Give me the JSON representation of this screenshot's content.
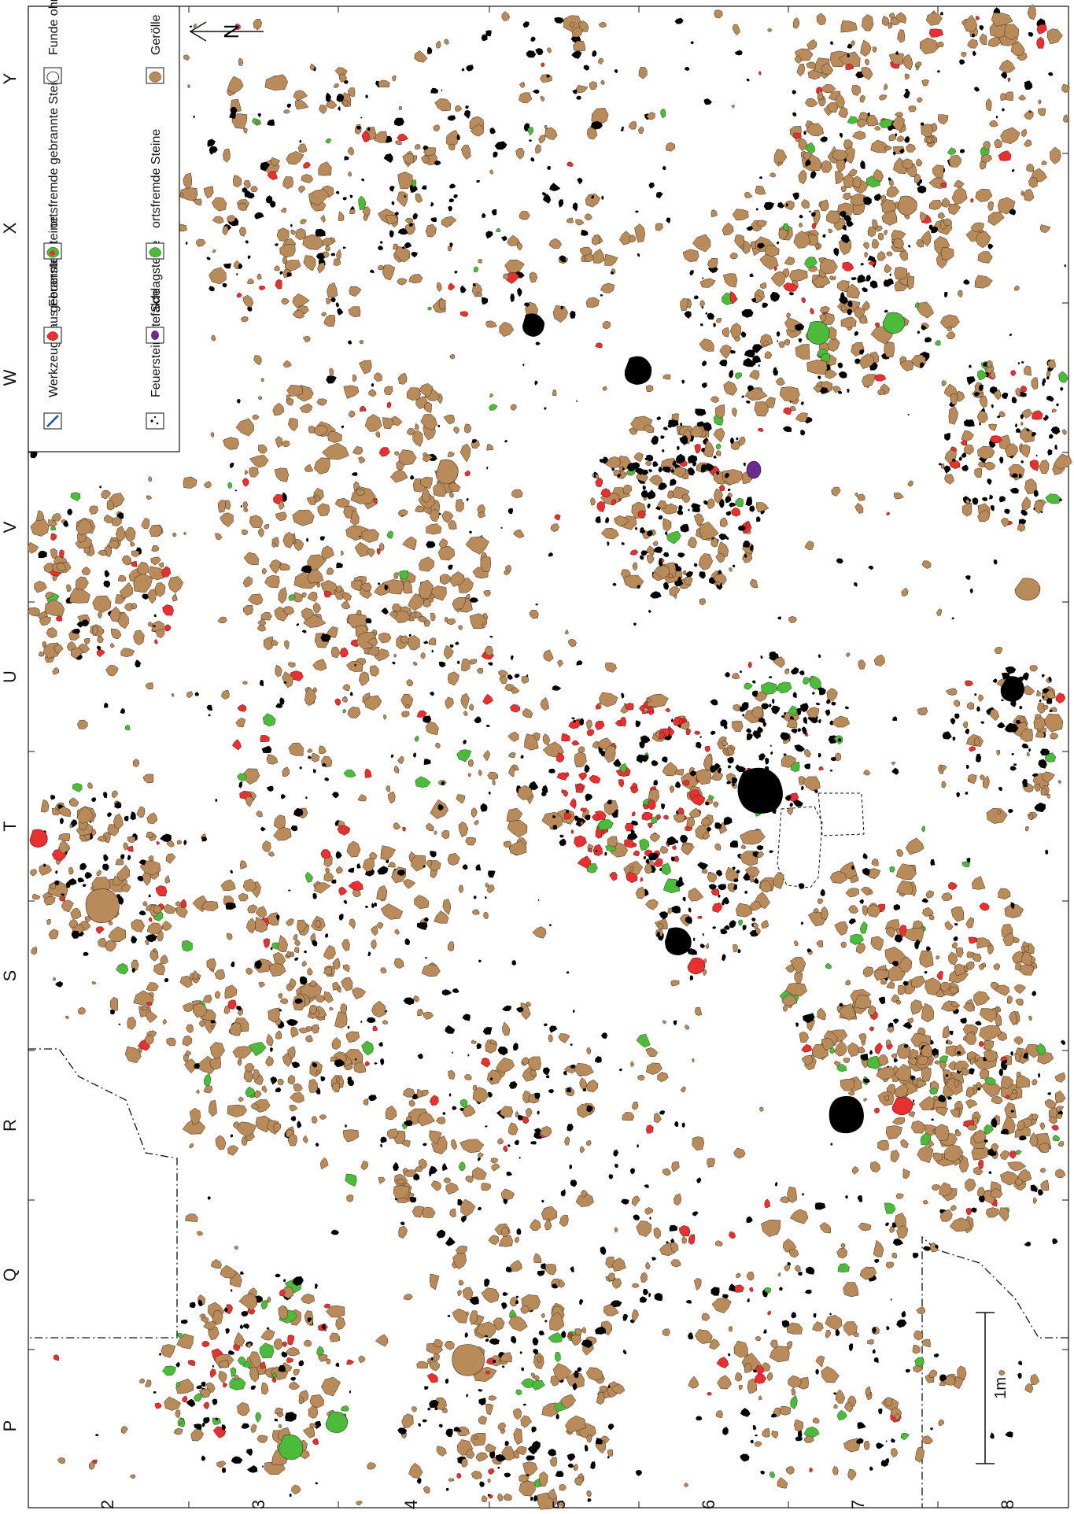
{
  "map": {
    "column_labels": [
      "Y",
      "X",
      "W",
      "V",
      "U",
      "T",
      "S",
      "R",
      "Q",
      "P"
    ],
    "row_labels": [
      "2",
      "3",
      "4",
      "5",
      "6",
      "7",
      "8"
    ],
    "scale_label": "1m",
    "north_marker": "N"
  },
  "legend": {
    "items": [
      {
        "label": "Feuersteinartefakte",
        "icon": "flint-artifact-icon"
      },
      {
        "label": "Schlagsteine",
        "icon": "hammerstone-icon"
      },
      {
        "label": "ortsfremde Steine",
        "icon": "foreign-stone-icon"
      },
      {
        "label": "Gerölle",
        "icon": "pebble-icon"
      },
      {
        "label": "Werkzeuge aus Feuerstein",
        "icon": "flint-tool-icon"
      },
      {
        "label": "gebrannte Steine",
        "icon": "burnt-stone-icon"
      },
      {
        "label": "ortsfremde gebrannte Steine",
        "icon": "foreign-burnt-stone-icon"
      },
      {
        "label": "Funde ohne Angaben",
        "icon": "unspecified-find-icon"
      }
    ]
  },
  "colors": {
    "flint": "#000000",
    "pebble": "#b98b5a",
    "foreign": "#4cbb3c",
    "burnt": "#e83030",
    "hammerstone": "#6a2b8c",
    "tool": "#1e4fa8"
  }
}
